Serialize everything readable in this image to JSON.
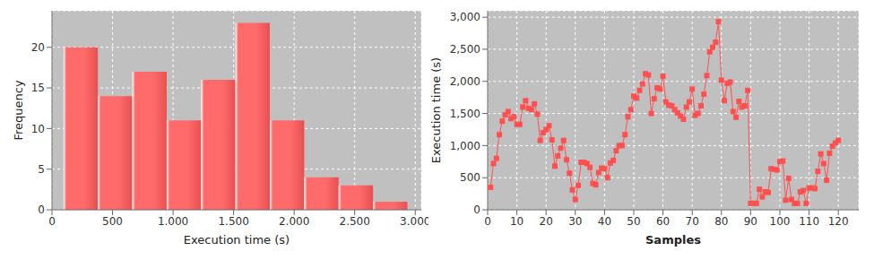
{
  "chart_data": [
    {
      "type": "histogram",
      "x_label": "Execution time (s)",
      "y_label": "Frequency",
      "bins": [
        95,
        379,
        663,
        947,
        1231,
        1515,
        1799,
        2083,
        2367,
        2651,
        2935
      ],
      "counts": [
        20,
        14,
        17,
        11,
        16,
        23,
        11,
        4,
        3,
        1
      ],
      "color": "#ff6b6b",
      "xlim": [
        0,
        3050
      ],
      "xticks": [
        0,
        500,
        {
          "value": 1000,
          "label": "1.000"
        },
        {
          "value": 1500,
          "label": "1.500"
        },
        {
          "value": 2000,
          "label": "2.000"
        },
        {
          "value": 2500,
          "label": "2.500"
        },
        {
          "value": 3000,
          "label": "3.000"
        }
      ],
      "ylim": [
        0,
        24.5
      ],
      "yticks": [
        0,
        5,
        10,
        15,
        20
      ],
      "grid": true
    },
    {
      "type": "line",
      "x_label": "Samples",
      "y_label": "Execution time (s)",
      "x": [
        1,
        2,
        3,
        4,
        5,
        6,
        7,
        8,
        9,
        10,
        11,
        12,
        13,
        14,
        15,
        16,
        17,
        18,
        19,
        20,
        21,
        22,
        23,
        24,
        25,
        26,
        27,
        28,
        29,
        30,
        31,
        32,
        33,
        34,
        35,
        36,
        37,
        38,
        39,
        40,
        41,
        42,
        43,
        44,
        45,
        46,
        47,
        48,
        49,
        50,
        51,
        52,
        53,
        54,
        55,
        56,
        57,
        58,
        59,
        60,
        61,
        62,
        63,
        64,
        65,
        66,
        67,
        68,
        69,
        70,
        71,
        72,
        73,
        74,
        75,
        76,
        77,
        78,
        79,
        80,
        81,
        82,
        83,
        84,
        85,
        86,
        87,
        88,
        89,
        90,
        91,
        92,
        93,
        94,
        95,
        96,
        97,
        98,
        99,
        100,
        101,
        102,
        103,
        104,
        105,
        106,
        107,
        108,
        109,
        110,
        111,
        112,
        113,
        114,
        115,
        116,
        117,
        118,
        119,
        120
      ],
      "values": [
        350,
        720,
        800,
        1170,
        1380,
        1480,
        1530,
        1420,
        1450,
        1330,
        1330,
        1600,
        1700,
        1580,
        1560,
        1650,
        1490,
        1080,
        1200,
        1250,
        1310,
        1090,
        680,
        840,
        960,
        1080,
        780,
        570,
        310,
        160,
        380,
        740,
        740,
        720,
        660,
        410,
        390,
        580,
        650,
        640,
        500,
        730,
        770,
        920,
        1000,
        1000,
        1170,
        1450,
        1560,
        1770,
        1740,
        1860,
        1960,
        2120,
        2100,
        1500,
        1730,
        1900,
        1880,
        2080,
        1680,
        1630,
        1620,
        1560,
        1510,
        1460,
        1410,
        1600,
        1680,
        1880,
        1470,
        1500,
        1620,
        1800,
        2090,
        2460,
        2530,
        2610,
        2930,
        2020,
        1700,
        1970,
        1990,
        1530,
        1440,
        1690,
        1600,
        1620,
        1860,
        100,
        100,
        100,
        320,
        200,
        280,
        270,
        640,
        630,
        620,
        750,
        760,
        150,
        490,
        160,
        100,
        100,
        280,
        300,
        100,
        340,
        340,
        330,
        600,
        870,
        720,
        460,
        880,
        990,
        1040,
        1080
      ],
      "color": "#ff5050",
      "marker": "square",
      "xlim": [
        0,
        127
      ],
      "xticks": [
        0,
        10,
        20,
        30,
        40,
        50,
        60,
        70,
        80,
        90,
        100,
        110,
        120
      ],
      "ylim": [
        0,
        3100
      ],
      "yticks": [
        0,
        500,
        {
          "value": 1000,
          "label": "1,000"
        },
        {
          "value": 1500,
          "label": "1,500"
        },
        {
          "value": 2000,
          "label": "2,000"
        },
        {
          "value": 2500,
          "label": "2,500"
        },
        {
          "value": 3000,
          "label": "3,000"
        }
      ],
      "grid": true
    }
  ]
}
